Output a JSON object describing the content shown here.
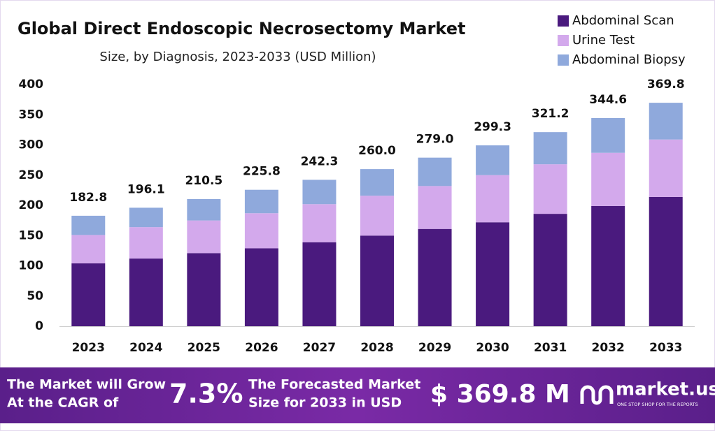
{
  "chart_data": {
    "type": "stacked_bar",
    "title": "Global Direct Endoscopic Necrosectomy Market",
    "subtitle": "Size, by Diagnosis, 2023-2033 (USD Million)",
    "categories": [
      "2023",
      "2024",
      "2025",
      "2026",
      "2027",
      "2028",
      "2029",
      "2030",
      "2031",
      "2032",
      "2033"
    ],
    "series": [
      {
        "name": "Abdominal Scan",
        "color": "#4a1a7e",
        "values": [
          104,
          112,
          121,
          129,
          139,
          150,
          161,
          172,
          186,
          199,
          214
        ]
      },
      {
        "name": "Urine Test",
        "color": "#d3a9ec",
        "values": [
          47,
          52,
          54,
          58,
          63,
          66,
          71,
          78,
          82,
          88,
          95
        ]
      },
      {
        "name": "Abdominal Biopsy",
        "color": "#8fa9dc",
        "values": [
          31.8,
          32.1,
          35.5,
          38.8,
          40.3,
          44,
          47,
          49.3,
          53.2,
          57.6,
          60.8
        ]
      }
    ],
    "totals": [
      182.8,
      196.1,
      210.5,
      225.8,
      242.3,
      260,
      279,
      299.3,
      321.2,
      344.6,
      369.8
    ],
    "total_labels": [
      "182.8",
      "196.1",
      "210.5",
      "225.8",
      "242.3",
      "260.0",
      "279.0",
      "299.3",
      "321.2",
      "344.6",
      "369.8"
    ],
    "ylim": [
      0,
      400
    ],
    "yticks": [
      0,
      50,
      100,
      150,
      200,
      250,
      300,
      350,
      400
    ],
    "grid": false,
    "legend": "top-right"
  },
  "footer": {
    "cagr_text_1": "The Market will Grow",
    "cagr_text_2": "At the CAGR of",
    "cagr": "7.3%",
    "forecast_text_1": "The Forecasted Market",
    "forecast_text_2": "Size for 2033 in USD",
    "forecast": "$ 369.8 M",
    "brand": "market.us",
    "tagline": "ONE STOP SHOP FOR THE REPORTS"
  }
}
